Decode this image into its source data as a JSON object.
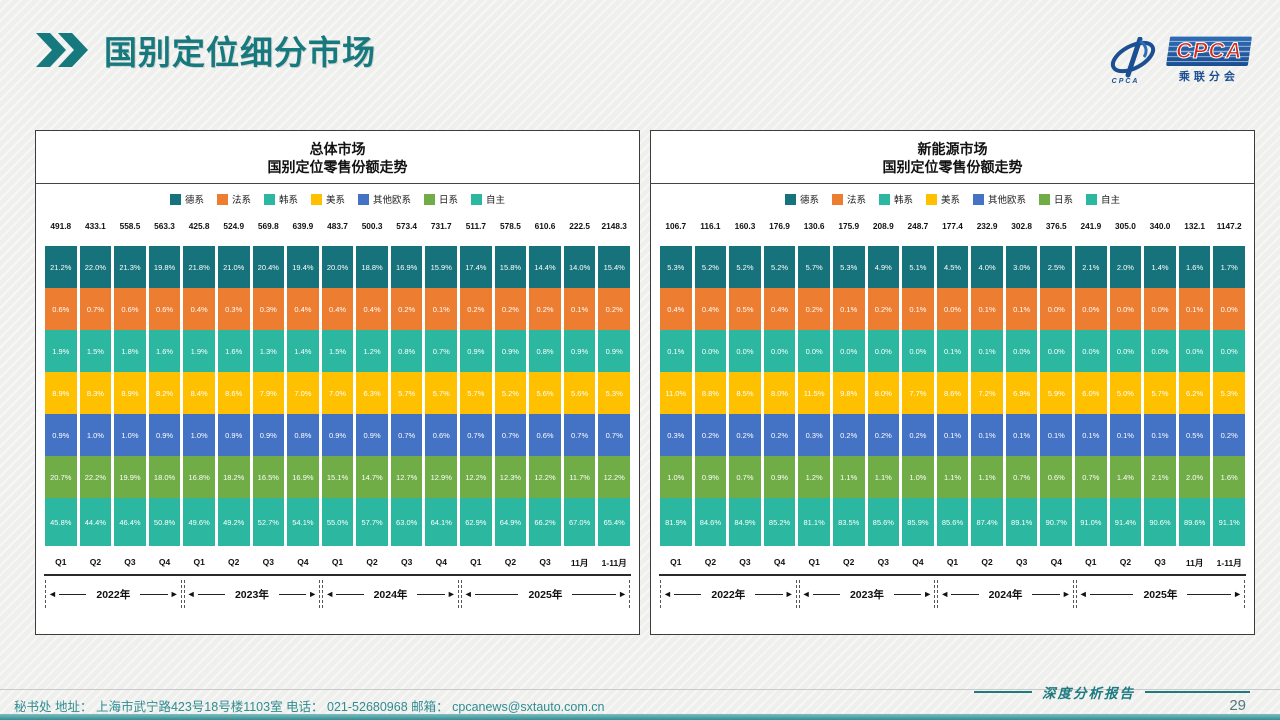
{
  "header": {
    "title": "国别定位细分市场"
  },
  "logo": {
    "cpca": "CPCA",
    "sub": "乘联分会",
    "mark_caption": "CPCA"
  },
  "legend": [
    "德系",
    "法系",
    "韩系",
    "美系",
    "其他欧系",
    "日系",
    "自主"
  ],
  "colors": {
    "德系": "#17737B",
    "法系": "#ED7D31",
    "韩系": "#2BB7A0",
    "美系": "#FFC000",
    "其他欧系": "#4472C4",
    "日系": "#70AD47",
    "自主": "#2BB7A0"
  },
  "x_labels": [
    "Q1",
    "Q2",
    "Q3",
    "Q4",
    "Q1",
    "Q2",
    "Q3",
    "Q4",
    "Q1",
    "Q2",
    "Q3",
    "Q4",
    "Q1",
    "Q2",
    "Q3",
    "11月",
    "1-11月"
  ],
  "year_groups": [
    {
      "label": "2022年",
      "span": 4
    },
    {
      "label": "2023年",
      "span": 4
    },
    {
      "label": "2024年",
      "span": 4
    },
    {
      "label": "2025年",
      "span": 5
    }
  ],
  "chart_data": [
    {
      "type": "bar",
      "stacked": true,
      "unit_note": "column totals in 万辆, segments in % share",
      "title_line1": "总体市场",
      "title_line2": "国别定位零售份额走势",
      "totals": [
        491.8,
        433.1,
        558.5,
        563.3,
        425.8,
        524.9,
        569.8,
        639.9,
        483.7,
        500.3,
        573.4,
        731.7,
        511.7,
        578.5,
        610.6,
        222.5,
        2148.3
      ],
      "series": [
        {
          "name": "德系",
          "values": [
            21.2,
            22.0,
            21.3,
            19.8,
            21.8,
            21.0,
            20.4,
            19.4,
            20.0,
            18.8,
            16.9,
            15.9,
            17.4,
            15.8,
            14.4,
            14.0,
            15.4
          ]
        },
        {
          "name": "法系",
          "values": [
            0.6,
            0.7,
            0.6,
            0.6,
            0.4,
            0.3,
            0.3,
            0.4,
            0.4,
            0.4,
            0.2,
            0.1,
            0.2,
            0.2,
            0.2,
            0.1,
            0.2
          ]
        },
        {
          "name": "韩系",
          "values": [
            1.9,
            1.5,
            1.8,
            1.6,
            1.9,
            1.6,
            1.3,
            1.4,
            1.5,
            1.2,
            0.8,
            0.7,
            0.9,
            0.9,
            0.8,
            0.9,
            0.9
          ]
        },
        {
          "name": "美系",
          "values": [
            8.9,
            8.3,
            8.9,
            8.2,
            8.4,
            8.6,
            7.9,
            7.0,
            7.0,
            6.3,
            5.7,
            5.7,
            5.7,
            5.2,
            5.6,
            5.6,
            5.3
          ]
        },
        {
          "name": "其他欧系",
          "values": [
            0.9,
            1.0,
            1.0,
            0.9,
            1.0,
            0.9,
            0.9,
            0.8,
            0.9,
            0.9,
            0.7,
            0.6,
            0.7,
            0.7,
            0.6,
            0.7,
            0.7
          ]
        },
        {
          "name": "日系",
          "values": [
            20.7,
            22.2,
            19.9,
            18.0,
            16.8,
            18.2,
            16.5,
            16.9,
            15.1,
            14.7,
            12.7,
            12.9,
            12.2,
            12.3,
            12.2,
            11.7,
            12.2
          ]
        },
        {
          "name": "自主",
          "values": [
            45.8,
            44.4,
            46.4,
            50.8,
            49.6,
            49.2,
            52.7,
            54.1,
            55.0,
            57.7,
            63.0,
            64.1,
            62.9,
            64.9,
            66.2,
            67.0,
            65.4
          ]
        }
      ]
    },
    {
      "type": "bar",
      "stacked": true,
      "unit_note": "column totals in 万辆, segments in % share",
      "title_line1": "新能源市场",
      "title_line2": "国别定位零售份额走势",
      "totals": [
        106.7,
        116.1,
        160.3,
        176.9,
        130.6,
        175.9,
        208.9,
        248.7,
        177.4,
        232.9,
        302.8,
        376.5,
        241.9,
        305.0,
        340.0,
        132.1,
        1147.2
      ],
      "series": [
        {
          "name": "德系",
          "values": [
            5.3,
            5.2,
            5.2,
            5.2,
            5.7,
            5.3,
            4.9,
            5.1,
            4.5,
            4.0,
            3.0,
            2.5,
            2.1,
            2.0,
            1.4,
            1.6,
            1.7
          ]
        },
        {
          "name": "法系",
          "values": [
            0.4,
            0.4,
            0.5,
            0.4,
            0.2,
            0.1,
            0.2,
            0.1,
            0.0,
            0.1,
            0.1,
            0.0,
            0.0,
            0.0,
            0.0,
            0.1,
            0.0
          ]
        },
        {
          "name": "韩系",
          "values": [
            0.1,
            0.0,
            0.0,
            0.0,
            0.0,
            0.0,
            0.0,
            0.0,
            0.1,
            0.1,
            0.0,
            0.0,
            0.0,
            0.0,
            0.0,
            0.0,
            0.0
          ]
        },
        {
          "name": "美系",
          "values": [
            11.0,
            8.8,
            8.5,
            8.0,
            11.5,
            9.8,
            8.0,
            7.7,
            8.6,
            7.2,
            6.9,
            5.9,
            6.0,
            5.0,
            5.7,
            6.2,
            5.3
          ]
        },
        {
          "name": "其他欧系",
          "values": [
            0.3,
            0.2,
            0.2,
            0.2,
            0.3,
            0.2,
            0.2,
            0.2,
            0.1,
            0.1,
            0.1,
            0.1,
            0.1,
            0.1,
            0.1,
            0.5,
            0.2
          ]
        },
        {
          "name": "日系",
          "values": [
            1.0,
            0.9,
            0.7,
            0.9,
            1.2,
            1.1,
            1.1,
            1.0,
            1.1,
            1.1,
            0.7,
            0.6,
            0.7,
            1.4,
            2.1,
            2.0,
            1.6
          ]
        },
        {
          "name": "自主",
          "values": [
            81.9,
            84.6,
            84.9,
            85.2,
            81.1,
            83.5,
            85.6,
            85.9,
            85.6,
            87.4,
            89.1,
            90.7,
            91.0,
            91.4,
            90.6,
            89.6,
            91.1
          ]
        }
      ]
    }
  ],
  "footer": {
    "contact": "秘书处   地址： 上海市武宁路423号18号楼1103室  电话： 021-52680968   邮箱： cpcanews@sxtauto.com.cn",
    "report_label": "深度分析报告",
    "page_number": "29"
  }
}
